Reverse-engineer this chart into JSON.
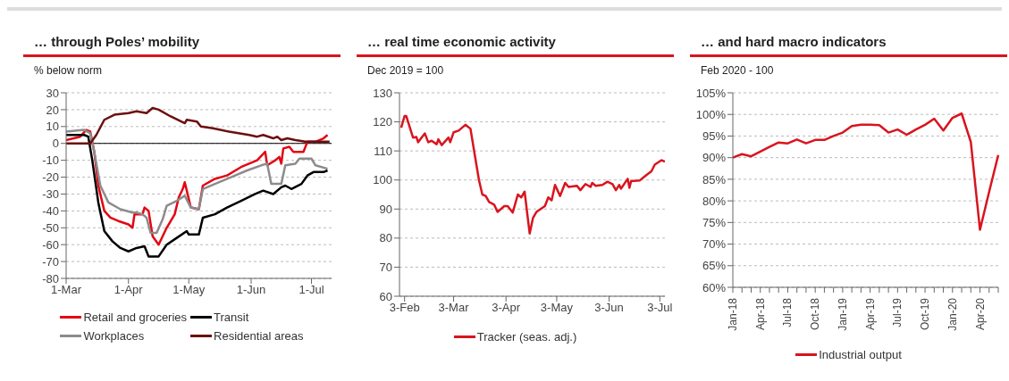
{
  "chart_data": [
    {
      "type": "line",
      "title": "… through Poles’ mobility",
      "subtitle": "% below norm",
      "xlim": [
        "--03-01",
        "--07-11"
      ],
      "xticks": [
        {
          "value": "--03-01",
          "label": "1-Mar"
        },
        {
          "value": "--04-01",
          "label": "1-Apr"
        },
        {
          "value": "--05-01",
          "label": "1-May"
        },
        {
          "value": "--06-01",
          "label": "1-Jun"
        },
        {
          "value": "--07-01",
          "label": "1-Jul"
        }
      ],
      "ylim": [
        -80,
        30
      ],
      "yticks": [
        -80,
        -70,
        -60,
        -50,
        -40,
        -30,
        -20,
        -10,
        0,
        10,
        20,
        30
      ],
      "grid": "y",
      "legend": "bottom",
      "ref_lines": [
        {
          "axis": "y",
          "value": 0,
          "color": "#000000"
        }
      ],
      "series": [
        {
          "name": "Retail and groceries",
          "color": "#e30613",
          "x": [
            "--03-01",
            "--03-08",
            "--03-11",
            "--03-13",
            "--03-15",
            "--03-17",
            "--03-20",
            "--03-23",
            "--03-27",
            "--04-01",
            "--04-03",
            "--04-04",
            "--04-08",
            "--04-09",
            "--04-11",
            "--04-13",
            "--04-16",
            "--04-20",
            "--04-24",
            "--04-26",
            "--04-28",
            "--04-29",
            "--05-01",
            "--05-02",
            "--05-06",
            "--05-08",
            "--05-14",
            "--05-20",
            "--05-27",
            "--06-04",
            "--06-08",
            "--06-09",
            "--06-13",
            "--06-15",
            "--06-16",
            "--06-17",
            "--06-20",
            "--06-22",
            "--06-27",
            "--06-29",
            "--07-03",
            "--07-07",
            "--07-09"
          ],
          "values": [
            2,
            4,
            8,
            7,
            -5,
            -25,
            -40,
            -44,
            -46,
            -48,
            -50,
            -42,
            -42,
            -38,
            -40,
            -55,
            -60,
            -50,
            -42,
            -32,
            -27,
            -23,
            -33,
            -38,
            -39,
            -25,
            -21,
            -19,
            -14,
            -10,
            -5,
            -13,
            -10,
            -8,
            -12,
            -3,
            -2,
            -5,
            -5,
            1,
            1,
            3,
            5
          ]
        },
        {
          "name": "Transit",
          "color": "#000000",
          "x": [
            "--03-01",
            "--03-10",
            "--03-12",
            "--03-14",
            "--03-17",
            "--03-20",
            "--03-24",
            "--03-28",
            "--04-01",
            "--04-05",
            "--04-09",
            "--04-11",
            "--04-16",
            "--04-20",
            "--04-25",
            "--04-30",
            "--05-01",
            "--05-06",
            "--05-08",
            "--05-14",
            "--05-20",
            "--05-27",
            "--06-03",
            "--06-07",
            "--06-12",
            "--06-16",
            "--06-18",
            "--06-21",
            "--06-26",
            "--06-29",
            "--07-02",
            "--07-07",
            "--07-09"
          ],
          "values": [
            5,
            5,
            4,
            -10,
            -35,
            -52,
            -58,
            -62,
            -64,
            -62,
            -61,
            -67,
            -67,
            -60,
            -56,
            -52,
            -54,
            -54,
            -44,
            -42,
            -38,
            -34,
            -30,
            -28,
            -30,
            -26,
            -25,
            -27,
            -24,
            -19,
            -17,
            -17,
            -16
          ]
        },
        {
          "name": "Workplaces",
          "color": "#8c8c8c",
          "x": [
            "--03-01",
            "--03-10",
            "--03-13",
            "--03-15",
            "--03-18",
            "--03-22",
            "--03-28",
            "--04-03",
            "--04-05",
            "--04-08",
            "--04-10",
            "--04-12",
            "--04-15",
            "--04-18",
            "--04-20",
            "--04-25",
            "--04-29",
            "--05-02",
            "--05-06",
            "--05-08",
            "--05-14",
            "--05-22",
            "--05-30",
            "--06-06",
            "--06-09",
            "--06-11",
            "--06-16",
            "--06-18",
            "--06-23",
            "--06-25",
            "--07-01",
            "--07-03",
            "--07-09"
          ],
          "values": [
            7,
            8,
            6,
            -5,
            -25,
            -35,
            -39,
            -41,
            -41,
            -42,
            -44,
            -53,
            -53,
            -45,
            -37,
            -34,
            -31,
            -38,
            -39,
            -27,
            -24,
            -20,
            -16,
            -13,
            -12,
            -24,
            -24,
            -13,
            -12,
            -9,
            -9,
            -13,
            -15
          ]
        },
        {
          "name": "Residential areas",
          "color": "#6b0f0f",
          "x": [
            "--03-01",
            "--03-10",
            "--03-13",
            "--03-16",
            "--03-20",
            "--03-25",
            "--04-01",
            "--04-05",
            "--04-10",
            "--04-13",
            "--04-16",
            "--04-22",
            "--04-29",
            "--04-30",
            "--05-05",
            "--05-07",
            "--05-13",
            "--05-21",
            "--05-31",
            "--06-04",
            "--06-07",
            "--06-12",
            "--06-14",
            "--06-16",
            "--06-19",
            "--06-23",
            "--06-28",
            "--07-10"
          ],
          "values": [
            0,
            0,
            0,
            5,
            14,
            17,
            18,
            19,
            18,
            21,
            20,
            16,
            12,
            14,
            13,
            10,
            9,
            7,
            5,
            4,
            5,
            3,
            4,
            2,
            3,
            2,
            1,
            1
          ]
        }
      ]
    },
    {
      "type": "line",
      "title": "… real time economic activity",
      "subtitle": "Dec 2019 = 100",
      "xlim": [
        "--01-31",
        "--07-06"
      ],
      "xticks": [
        {
          "value": "--02-03",
          "label": "3-Feb"
        },
        {
          "value": "--03-03",
          "label": "3-Mar"
        },
        {
          "value": "--04-03",
          "label": "3-Apr"
        },
        {
          "value": "--05-03",
          "label": "3-May"
        },
        {
          "value": "--06-03",
          "label": "3-Jun"
        },
        {
          "value": "--07-03",
          "label": "3-Jul"
        }
      ],
      "ylim": [
        60,
        130
      ],
      "yticks": [
        60,
        70,
        80,
        90,
        100,
        110,
        120,
        130
      ],
      "grid": "y",
      "legend": "bottom",
      "series": [
        {
          "name": "Tracker (seas. adj.)",
          "color": "#d9141e",
          "x": [
            "--02-01",
            "--02-03",
            "--02-04",
            "--02-08",
            "--02-10",
            "--02-11",
            "--02-15",
            "--02-17",
            "--02-19",
            "--02-22",
            "--02-23",
            "--02-25",
            "--02-29",
            "--03-01",
            "--03-03",
            "--03-06",
            "--03-10",
            "--03-13",
            "--03-15",
            "--03-18",
            "--03-20",
            "--03-22",
            "--03-24",
            "--03-27",
            "--03-29",
            "--04-02",
            "--04-04",
            "--04-07",
            "--04-10",
            "--04-12",
            "--04-14",
            "--04-17",
            "--04-19",
            "--04-21",
            "--04-26",
            "--04-28",
            "--04-30",
            "--05-02",
            "--05-05",
            "--05-08",
            "--05-10",
            "--05-15",
            "--05-17",
            "--05-20",
            "--05-23",
            "--05-24",
            "--05-26",
            "--05-30",
            "--06-02",
            "--06-05",
            "--06-07",
            "--06-09",
            "--06-10",
            "--06-14",
            "--06-15",
            "--06-16",
            "--06-21",
            "--06-25",
            "--06-28",
            "--06-30",
            "--07-04",
            "--07-06"
          ],
          "values": [
            118,
            122,
            122,
            114.6,
            114.8,
            113,
            116,
            113,
            113.5,
            112.3,
            114,
            112,
            114.6,
            113,
            116.4,
            117,
            119,
            117.6,
            110.5,
            100,
            95,
            94.5,
            92.4,
            91.5,
            89,
            91,
            91,
            88.8,
            95,
            94,
            96,
            81.6,
            87,
            89,
            91,
            94,
            93,
            98.3,
            94.5,
            99,
            97.6,
            98,
            96.5,
            98.6,
            97.6,
            99,
            98,
            98.3,
            99.4,
            98.6,
            96.5,
            98.3,
            97,
            100.4,
            97.3,
            99.6,
            99.8,
            101.7,
            103,
            105.3,
            106.8,
            106.3
          ]
        }
      ]
    },
    {
      "type": "line",
      "title": "… and hard macro indicators",
      "subtitle": "Feb 2020 - 100",
      "categories": [
        "Jan-18",
        null,
        null,
        "Apr-18",
        null,
        null,
        "Jul-18",
        null,
        null,
        "Oct-18",
        null,
        null,
        "Jan-19",
        null,
        null,
        "Apr-19",
        null,
        null,
        "Jul-19",
        null,
        null,
        "Oct-19",
        null,
        null,
        "Jan-20",
        null,
        null,
        "Apr-20",
        null,
        null
      ],
      "ylim": [
        60,
        105
      ],
      "yticks": [
        {
          "value": 60,
          "label": "60%"
        },
        {
          "value": 65,
          "label": "65%"
        },
        {
          "value": 70,
          "label": "70%"
        },
        {
          "value": 75,
          "label": "75%"
        },
        {
          "value": 80,
          "label": "80%"
        },
        {
          "value": 85,
          "label": "85%"
        },
        {
          "value": 90,
          "label": "90%"
        },
        {
          "value": 95,
          "label": "95%"
        },
        {
          "value": 100,
          "label": "100%"
        },
        {
          "value": 105,
          "label": "105%"
        }
      ],
      "grid": "y",
      "legend": "bottom",
      "series": [
        {
          "name": "Industrial output",
          "color": "#d9141e",
          "values": [
            90.0,
            90.8,
            90.3,
            91.4,
            92.5,
            93.5,
            93.3,
            94.2,
            93.3,
            94.1,
            94.1,
            95.0,
            95.8,
            97.3,
            97.6,
            97.6,
            97.5,
            95.8,
            96.5,
            95.3,
            96.5,
            97.6,
            99.0,
            96.3,
            99.2,
            100.2,
            93.6,
            73.3,
            82.1,
            90.6
          ]
        }
      ]
    }
  ]
}
